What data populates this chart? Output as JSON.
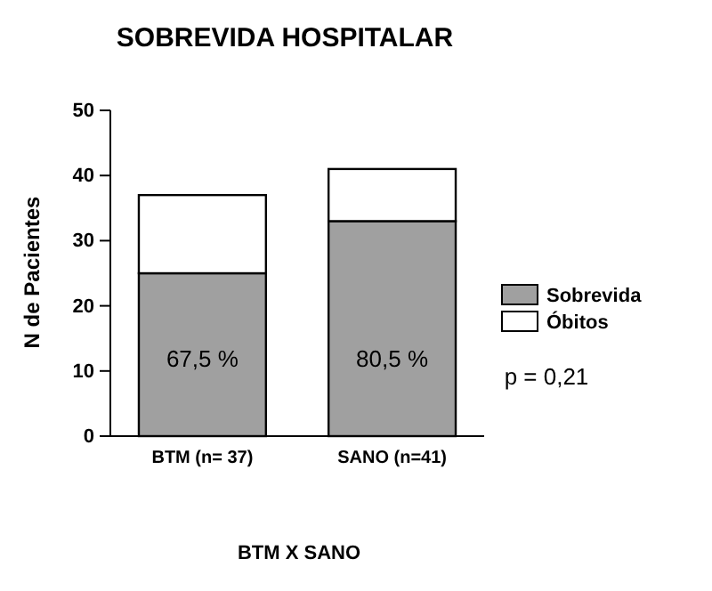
{
  "chart_data": {
    "type": "bar",
    "title": "SOBREVIDA HOSPITALAR",
    "xlabel": "BTM X SANO",
    "ylabel": "N de Pacientes",
    "categories": [
      "BTM (n= 37)",
      "SANO (n=41)"
    ],
    "stacked": true,
    "series": [
      {
        "name": "Sobrevida",
        "color": "#a0a0a0",
        "values": [
          25,
          33
        ]
      },
      {
        "name": "Óbitos",
        "color": "#ffffff",
        "values": [
          12,
          8
        ]
      }
    ],
    "ylim": [
      0,
      50
    ],
    "yticks": [
      0,
      10,
      20,
      30,
      40,
      50
    ],
    "grid": false,
    "legend": "right",
    "annotations": [
      "67,5 %",
      "80,5 %",
      "p = 0,21"
    ]
  }
}
